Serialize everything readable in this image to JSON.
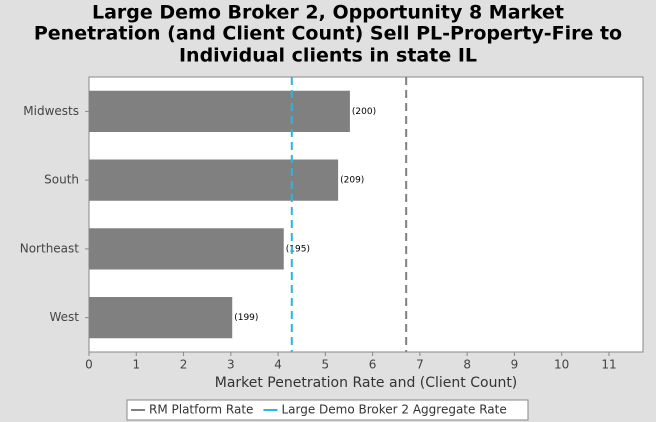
{
  "chart_data": {
    "type": "hbar",
    "title_lines": [
      "Large Demo Broker 2, Opportunity 8 Market",
      "Penetration (and Client Count) Sell PL-Property-Fire to",
      "Individual clients in state IL"
    ],
    "x_label": "Market Penetration Rate and (Client Count)",
    "categories": [
      "Midwests",
      "South",
      "Northeast",
      "West"
    ],
    "values": [
      5.52,
      5.27,
      4.12,
      3.03
    ],
    "count_labels": [
      "(200)",
      "(209)",
      "(195)",
      "(199)"
    ],
    "color": "#808080",
    "xlim": [
      0,
      11.72
    ],
    "xticks": [
      0,
      1,
      2,
      3,
      4,
      5,
      6,
      7,
      8,
      9,
      10,
      11
    ],
    "reference_lines": [
      {
        "name": "RM Platform Rate",
        "color": "#808080",
        "value": 6.71
      },
      {
        "name": "Large Demo Broker 2 Aggregate Rate",
        "color": "#29b6e0",
        "value": 4.29
      }
    ]
  }
}
